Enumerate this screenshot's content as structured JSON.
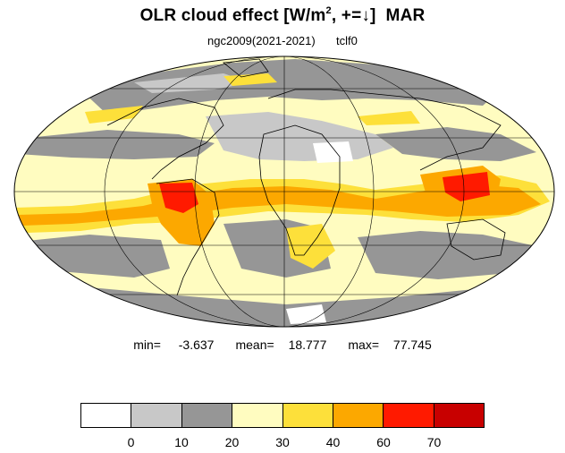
{
  "title": {
    "main": "OLR cloud effect [W/m",
    "sup": "2",
    "rest": ", +=↓]  MAR"
  },
  "subtitle": {
    "left": "ngc2009(2021-2021)",
    "right": "tclf0"
  },
  "stats": {
    "min_label": "min=",
    "min_value": "-3.637",
    "mean_label": "mean=",
    "mean_value": "18.777",
    "max_label": "max=",
    "max_value": "77.745"
  },
  "colorbar": {
    "colors": [
      "#ffffff",
      "#c8c8c8",
      "#969696",
      "#fffcc0",
      "#fde03a",
      "#fca800",
      "#ff1a00",
      "#c80000"
    ],
    "labels": [
      "0",
      "10",
      "20",
      "30",
      "40",
      "60",
      "70"
    ]
  },
  "map": {
    "projection": "mollweide",
    "background_color": "#fffcc0"
  }
}
